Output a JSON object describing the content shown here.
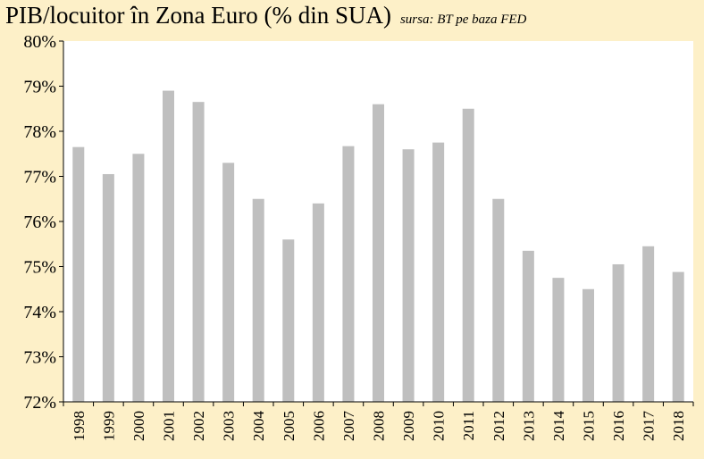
{
  "chart_data": {
    "type": "bar",
    "title": "PIB/locuitor în Zona Euro (% din SUA)",
    "subtitle": "sursa: BT pe baza FED",
    "xlabel": "",
    "ylabel": "",
    "categories": [
      "1998",
      "1999",
      "2000",
      "2001",
      "2002",
      "2003",
      "2004",
      "2005",
      "2006",
      "2007",
      "2008",
      "2009",
      "2010",
      "2011",
      "2012",
      "2013",
      "2014",
      "2015",
      "2016",
      "2017",
      "2018"
    ],
    "values": [
      77.65,
      77.05,
      77.5,
      78.9,
      78.65,
      77.3,
      76.5,
      75.6,
      76.4,
      77.67,
      78.6,
      77.6,
      77.75,
      78.5,
      76.5,
      75.35,
      74.75,
      74.5,
      75.05,
      75.45,
      74.88
    ],
    "ylim": [
      72,
      80
    ],
    "yticks": [
      "72%",
      "73%",
      "74%",
      "75%",
      "76%",
      "77%",
      "78%",
      "79%",
      "80%"
    ],
    "grid": false,
    "legend": "none",
    "colors": {
      "background": "#fdf0c8",
      "plot_background": "#ffffff",
      "bar": "#bfbfbf",
      "axis": "#000000"
    }
  }
}
